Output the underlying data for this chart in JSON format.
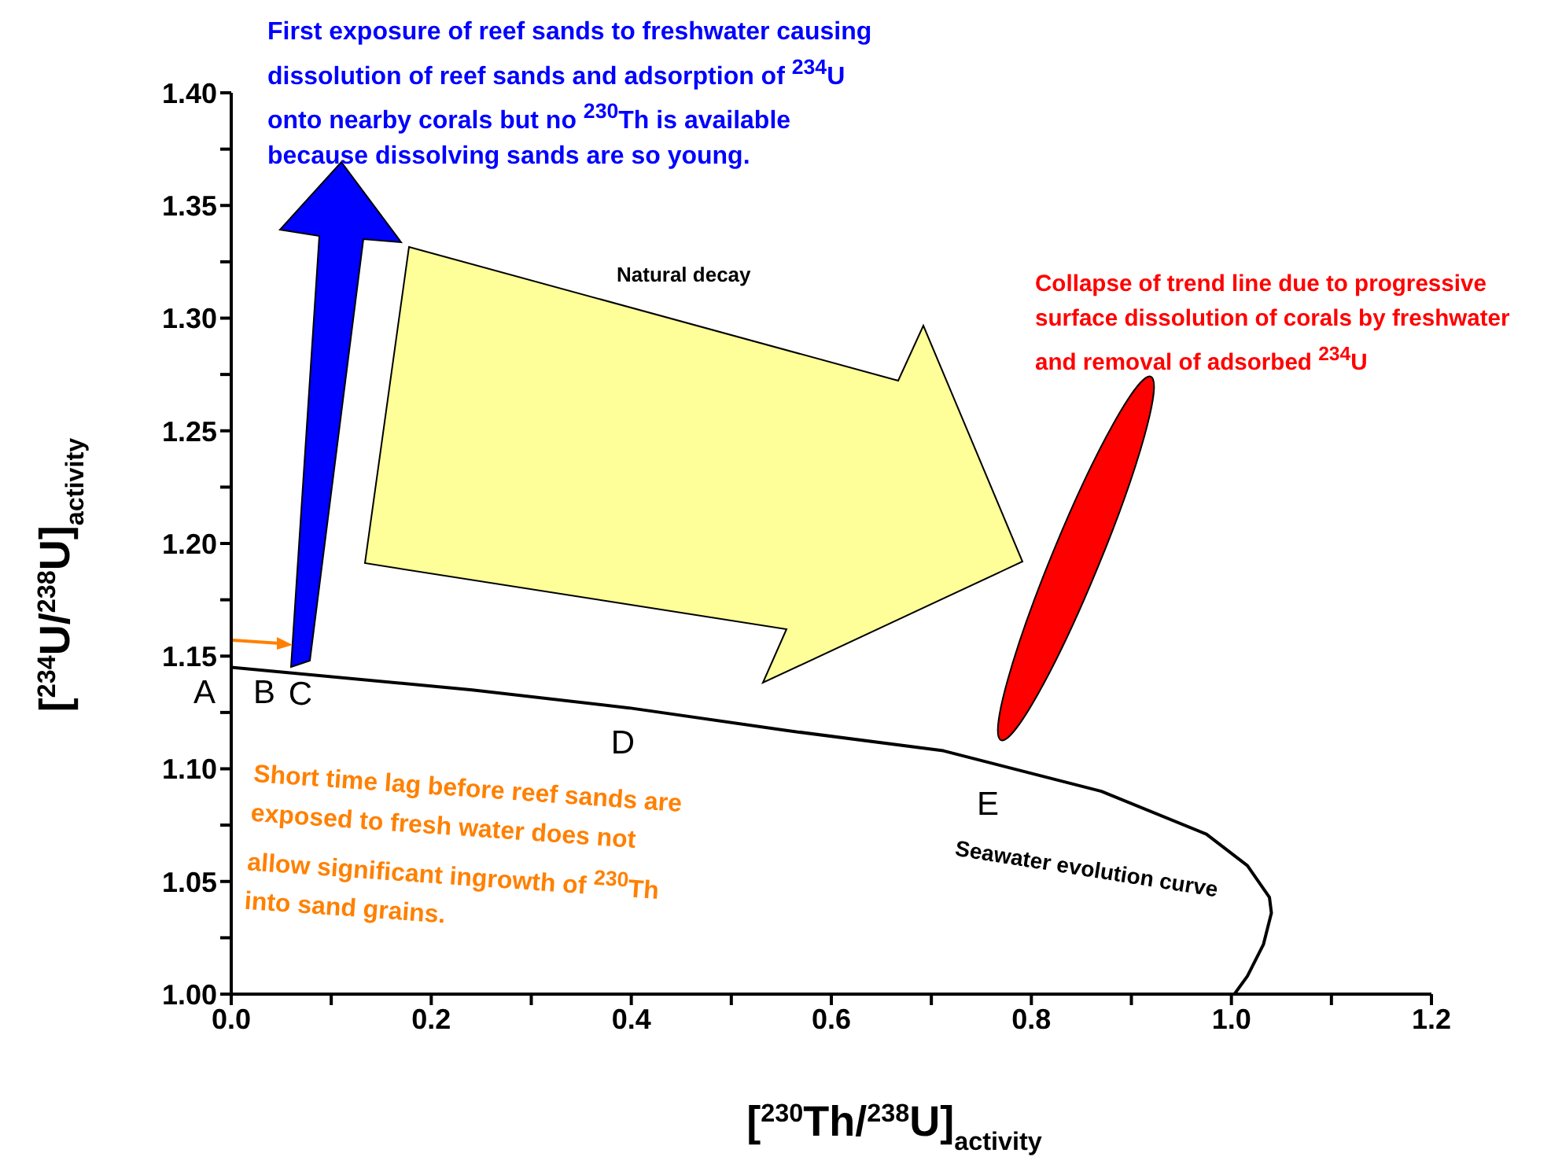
{
  "chart_data": {
    "type": "line",
    "xlabel": "[$^{230}$Th/$^{238}$U]$_{activity}$",
    "ylabel": "[$^{234}$U/$^{238}$U]$_{activity}$",
    "xlim": [
      0,
      1.2
    ],
    "ylim": [
      1.0,
      1.4
    ],
    "xticks": [
      {
        "value": 0,
        "label": "0.0"
      },
      {
        "value": 0.1,
        "label": null
      },
      {
        "value": 0.2,
        "label": "0.2"
      },
      {
        "value": 0.3,
        "label": null
      },
      {
        "value": 0.4,
        "label": "0.4"
      },
      {
        "value": 0.5,
        "label": null
      },
      {
        "value": 0.6,
        "label": "0.6"
      },
      {
        "value": 0.7,
        "label": null
      },
      {
        "value": 0.8,
        "label": "0.8"
      },
      {
        "value": 0.9,
        "label": null
      },
      {
        "value": 1.0,
        "label": "1.0"
      },
      {
        "value": 1.1,
        "label": null
      },
      {
        "value": 1.2,
        "label": "1.2"
      }
    ],
    "yticks": [
      {
        "value": 1.0,
        "label": "1.00"
      },
      {
        "value": 1.025,
        "label": null
      },
      {
        "value": 1.05,
        "label": "1.05"
      },
      {
        "value": 1.075,
        "label": null
      },
      {
        "value": 1.1,
        "label": "1.10"
      },
      {
        "value": 1.125,
        "label": null
      },
      {
        "value": 1.15,
        "label": "1.15"
      },
      {
        "value": 1.175,
        "label": null
      },
      {
        "value": 1.2,
        "label": "1.20"
      },
      {
        "value": 1.225,
        "label": null
      },
      {
        "value": 1.25,
        "label": "1.25"
      },
      {
        "value": 1.275,
        "label": null
      },
      {
        "value": 1.3,
        "label": "1.30"
      },
      {
        "value": 1.325,
        "label": null
      },
      {
        "value": 1.35,
        "label": "1.35"
      },
      {
        "value": 1.375,
        "label": null
      },
      {
        "value": 1.4,
        "label": "1.40"
      }
    ],
    "marker": "none",
    "line_style": "solid",
    "series": [
      {
        "name": "Seawater evolution curve",
        "color": "#000000",
        "x": [
          0,
          0.241,
          0.398,
          0.555,
          0.712,
          0.87,
          0.975,
          1.016,
          1.038,
          1.04,
          1.032,
          1.016,
          1.003
        ],
        "values": [
          1.145,
          1.135,
          1.127,
          1.117,
          1.108,
          1.09,
          1.071,
          1.057,
          1.043,
          1.036,
          1.022,
          1.008,
          1.0
        ]
      }
    ],
    "annotations": [
      "First exposure of reef sands to freshwater causing dissolution of reef sands and adsorption of $^{234}$U onto nearby corals but no $^{230}$Th is available because dissolving sands are so young.",
      "Natural decay",
      "Collapse of trend line due to progressive surface dissolution of corals by freshwater and removal of adsorbed $^{234}$U",
      "Short time lag before reef sands are exposed to fresh water does not allow significant ingrowth of $^{230}$Th into sand grains.",
      "A",
      "B",
      "C",
      "D",
      "E"
    ]
  }
}
